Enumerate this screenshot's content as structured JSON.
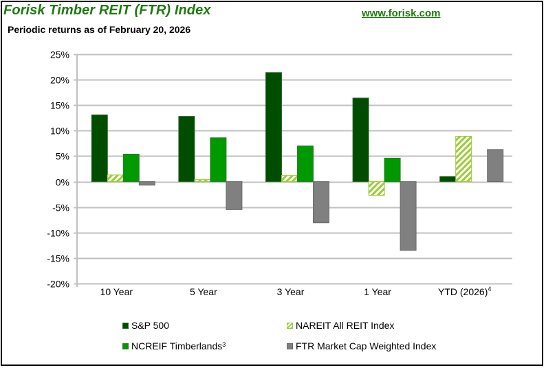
{
  "header": {
    "title": "Forisk Timber REIT (FTR) Index",
    "subtitle": "Periodic returns as of  February 20, 2026",
    "url": "www.forisk.com"
  },
  "colors": {
    "sp500": "#004d00",
    "nareit": "#9acd32",
    "ncreif": "#009900",
    "ftr": "#808080",
    "grid": "#c0c0c0",
    "title": "#1e7a0e"
  },
  "chart_data": {
    "type": "bar",
    "title": "Forisk Timber REIT (FTR) Index",
    "subtitle": "Periodic returns as of  February 20, 2026",
    "xlabel": "",
    "ylabel": "",
    "categories": [
      "10 Year",
      "5 Year",
      "3 Year",
      "1 Year",
      "YTD (2026)"
    ],
    "category_superscripts": [
      "",
      "",
      "",
      "",
      "4"
    ],
    "ylim": [
      -20,
      25
    ],
    "yticks": [
      25,
      20,
      15,
      10,
      5,
      0,
      -5,
      -10,
      -15,
      -20
    ],
    "ytick_labels": [
      "25%",
      "20%",
      "15%",
      "10%",
      "5%",
      "0%",
      "-5%",
      "-10%",
      "-15%",
      "-20%"
    ],
    "grid": true,
    "legend_position": "bottom",
    "series": [
      {
        "name": "S&P 500",
        "superscript": "",
        "pattern": "solid",
        "values": [
          13.1,
          12.8,
          21.4,
          16.4,
          1.0
        ]
      },
      {
        "name": "NAREIT All REIT Index",
        "superscript": "",
        "pattern": "hatched",
        "values": [
          1.3,
          0.4,
          1.2,
          -2.7,
          8.9
        ]
      },
      {
        "name": "NCREIF Timberlands",
        "superscript": "3",
        "pattern": "solid",
        "values": [
          5.4,
          8.6,
          7.0,
          4.6,
          null
        ]
      },
      {
        "name": "FTR Market Cap Weighted Index",
        "superscript": "",
        "pattern": "solid",
        "values": [
          -0.7,
          -5.5,
          -8.1,
          -13.5,
          6.3
        ]
      }
    ]
  }
}
